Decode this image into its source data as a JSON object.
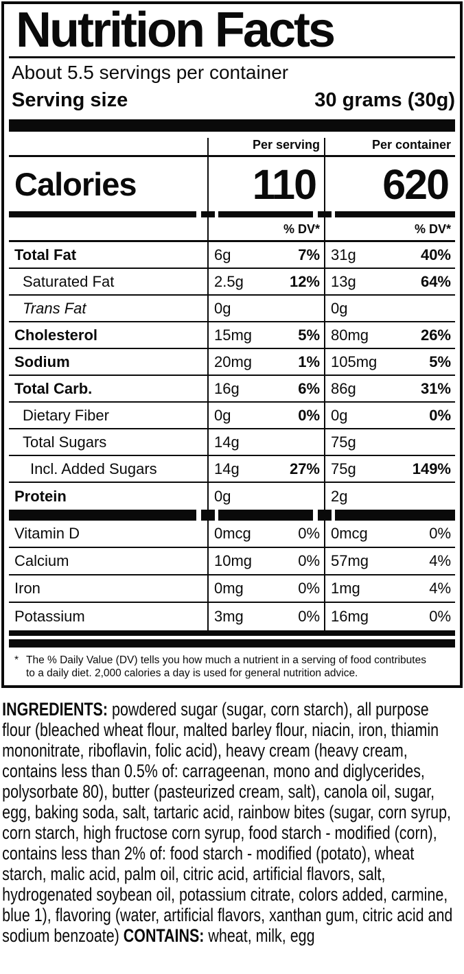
{
  "colors": {
    "ink": "#0a0a0a",
    "paper": "#ffffff"
  },
  "label": {
    "title": "Nutrition Facts",
    "servings_per_container": "About 5.5 servings per container",
    "serving_size_label": "Serving size",
    "serving_size_value": "30 grams (30g)",
    "col_headers": {
      "per_serving": "Per serving",
      "per_container": "Per container"
    },
    "calories": {
      "label": "Calories",
      "per_serving": "110",
      "per_container": "620"
    },
    "dv_header": "% DV*",
    "rows": [
      {
        "name": "Total Fat",
        "style": "bold",
        "indent": 0,
        "ps_amount": "6g",
        "ps_dv": "7%",
        "pc_amount": "31g",
        "pc_dv": "40%"
      },
      {
        "name": "Saturated Fat",
        "style": "normal",
        "indent": 1,
        "ps_amount": "2.5g",
        "ps_dv": "12%",
        "pc_amount": "13g",
        "pc_dv": "64%"
      },
      {
        "name": "Trans Fat",
        "style": "italic",
        "indent": 1,
        "ps_amount": "0g",
        "ps_dv": "",
        "pc_amount": "0g",
        "pc_dv": ""
      },
      {
        "name": "Cholesterol",
        "style": "bold",
        "indent": 0,
        "ps_amount": "15mg",
        "ps_dv": "5%",
        "pc_amount": "80mg",
        "pc_dv": "26%"
      },
      {
        "name": "Sodium",
        "style": "bold",
        "indent": 0,
        "ps_amount": "20mg",
        "ps_dv": "1%",
        "pc_amount": "105mg",
        "pc_dv": "5%"
      },
      {
        "name": "Total Carb.",
        "style": "bold",
        "indent": 0,
        "ps_amount": "16g",
        "ps_dv": "6%",
        "pc_amount": "86g",
        "pc_dv": "31%"
      },
      {
        "name": "Dietary Fiber",
        "style": "normal",
        "indent": 1,
        "ps_amount": "0g",
        "ps_dv": "0%",
        "pc_amount": "0g",
        "pc_dv": "0%"
      },
      {
        "name": "Total Sugars",
        "style": "normal",
        "indent": 1,
        "ps_amount": "14g",
        "ps_dv": "",
        "pc_amount": "75g",
        "pc_dv": ""
      },
      {
        "name": "Incl. Added Sugars",
        "style": "normal",
        "indent": 2,
        "ps_amount": "14g",
        "ps_dv": "27%",
        "pc_amount": "75g",
        "pc_dv": "149%"
      },
      {
        "name": "Protein",
        "style": "bold",
        "indent": 0,
        "ps_amount": "0g",
        "ps_dv": "",
        "pc_amount": "2g",
        "pc_dv": ""
      }
    ],
    "vitamins": [
      {
        "name": "Vitamin D",
        "ps_amount": "0mcg",
        "ps_dv": "0%",
        "pc_amount": "0mcg",
        "pc_dv": "0%"
      },
      {
        "name": "Calcium",
        "ps_amount": "10mg",
        "ps_dv": "0%",
        "pc_amount": "57mg",
        "pc_dv": "4%"
      },
      {
        "name": "Iron",
        "ps_amount": "0mg",
        "ps_dv": "0%",
        "pc_amount": "1mg",
        "pc_dv": "4%"
      },
      {
        "name": "Potassium",
        "ps_amount": "3mg",
        "ps_dv": "0%",
        "pc_amount": "16mg",
        "pc_dv": "0%"
      }
    ],
    "footnote_marker": "*",
    "footnote_line1": "The % Daily Value (DV) tells you how much a nutrient in a serving of food contributes",
    "footnote_line2": "to a daily diet. 2,000 calories a day is used for general nutrition advice."
  },
  "ingredients": {
    "label": "INGREDIENTS:",
    "text": "powdered sugar (sugar, corn starch), all purpose flour (bleached wheat flour, malted barley flour, niacin, iron, thiamin mononitrate, riboflavin, folic acid), heavy cream (heavy cream, contains less than 0.5% of: carrageenan, mono and diglycerides, polysorbate 80), butter (pasteurized cream, salt), canola oil, sugar, egg, baking soda, salt, tartaric acid, rainbow bites (sugar, corn syrup, corn starch, high fructose corn syrup, food starch - modified (corn), contains less than 2% of: food starch - modified (potato), wheat starch, malic acid, palm oil, citric acid, artificial flavors, salt, hydrogenated soybean oil, potassium citrate, colors added, carmine, blue 1), flavoring (water, artificial flavors, xanthan gum, citric acid and sodium benzoate)",
    "contains_label": "CONTAINS:",
    "contains_text": "wheat, milk, egg"
  }
}
